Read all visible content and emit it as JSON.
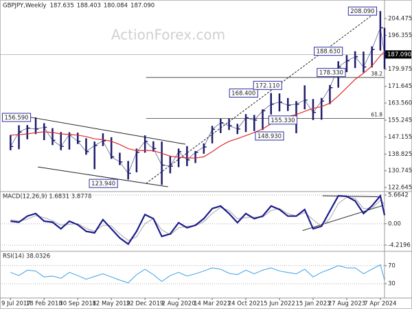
{
  "chart_data": [
    {
      "type": "ohlc",
      "title": "GBPJPY,Weekly",
      "ohlc_labels": [
        "187.635",
        "188.403",
        "180.084",
        "187.090"
      ],
      "watermark": "ActionForex.com",
      "x": [
        0,
        8,
        16,
        24,
        32,
        40,
        48,
        56,
        64,
        72,
        80,
        88,
        96,
        104,
        112,
        120,
        128,
        136,
        144,
        152,
        160,
        168,
        176,
        184,
        192,
        200,
        208,
        216,
        224,
        232,
        240,
        248,
        256,
        264,
        272,
        280,
        288,
        296,
        304,
        312,
        320,
        328,
        336,
        344,
        352,
        356
      ],
      "xlim": [
        -10,
        356
      ],
      "high": [
        148.1,
        152.8,
        152.9,
        156.59,
        153.8,
        151.4,
        149.5,
        149.4,
        149.2,
        146.5,
        144.9,
        148.9,
        147.0,
        139.5,
        135.5,
        141.5,
        147.9,
        145.0,
        144.9,
        137.9,
        141.5,
        142.7,
        140.3,
        144.0,
        152.5,
        156.0,
        156.1,
        153.5,
        158.2,
        157.8,
        160.5,
        168.4,
        168.2,
        166.0,
        164.5,
        172.11,
        165.5,
        166.0,
        172.3,
        183.8,
        186.8,
        188.63,
        188.5,
        191.0,
        208.09,
        200.0
      ],
      "low": [
        140.7,
        141.2,
        146.0,
        148.5,
        145.6,
        143.2,
        140.7,
        141.0,
        143.7,
        138.5,
        131.5,
        142.7,
        136.5,
        133.5,
        126.5,
        130.0,
        139.5,
        140.0,
        123.94,
        129.5,
        132.5,
        133.0,
        134.5,
        139.0,
        144.0,
        149.0,
        150.5,
        148.5,
        149.5,
        150.0,
        150.5,
        158.0,
        159.5,
        159.7,
        148.93,
        160.5,
        155.33,
        155.5,
        163.0,
        171.0,
        178.5,
        180.5,
        178.33,
        180.8,
        189.0,
        180.084
      ],
      "close": [
        142.5,
        149.5,
        151.4,
        151.0,
        151.8,
        145.5,
        142.6,
        148.2,
        145.0,
        140.0,
        143.0,
        145.2,
        137.5,
        135.0,
        129.5,
        139.7,
        145.0,
        141.5,
        133.5,
        133.0,
        140.0,
        136.0,
        139.7,
        142.3,
        150.8,
        154.0,
        152.6,
        151.0,
        156.4,
        155.3,
        159.8,
        163.0,
        164.0,
        162.5,
        163.0,
        165.0,
        159.0,
        164.5,
        171.0,
        181.0,
        184.0,
        186.0,
        181.0,
        189.5,
        200.0,
        187.09
      ],
      "color": "#1c1c6b",
      "ma": {
        "color": "#e02a2a",
        "values": [
          148.0,
          148.2,
          148.6,
          149.2,
          149.6,
          149.3,
          148.6,
          148.3,
          148.0,
          147.3,
          146.2,
          145.8,
          145.0,
          143.5,
          141.5,
          140.5,
          140.6,
          140.5,
          139.2,
          137.8,
          137.3,
          137.0,
          136.9,
          137.5,
          140.0,
          142.8,
          145.0,
          146.3,
          147.8,
          149.3,
          151.0,
          153.5,
          155.5,
          157.0,
          158.0,
          159.5,
          161.0,
          161.8,
          163.5,
          167.0,
          171.0,
          175.0,
          178.0,
          181.5,
          186.5,
          188.5
        ]
      },
      "ylim": [
        121,
        212.8
      ],
      "yticks": [
        122.645,
        130.745,
        138.825,
        147.155,
        155.245,
        {
          "value": 163.56,
          "label": "163.560"
        },
        171.645,
        179.975,
        196.355,
        204.475
      ],
      "last_price": {
        "value": 187.09,
        "label": "187.090"
      },
      "annotations": [
        {
          "text": "156.590",
          "x": 24,
          "y": 156.59
        },
        {
          "text": "123.940",
          "x": 144,
          "y": 123.94
        },
        {
          "text": "168.400",
          "x": 248,
          "y": 168.4
        },
        {
          "text": "172.110",
          "x": 280,
          "y": 172.11
        },
        {
          "text": "148.930",
          "x": 272,
          "y": 148.93
        },
        {
          "text": "155.330",
          "x": 288,
          "y": 155.33
        },
        {
          "text": "188.630",
          "x": 328,
          "y": 188.63
        },
        {
          "text": "178.330",
          "x": 336,
          "y": 178.33
        },
        {
          "text": "208.090",
          "x": 352,
          "y": 208.09
        }
      ],
      "levels": [
        {
          "label": "38.2",
          "value": 175.94,
          "x": 129
        },
        {
          "label": "61.8",
          "value": 156.08,
          "x": 129
        }
      ],
      "trendlines": [
        {
          "points": [
            [
              16.5,
              156.9
            ],
            [
              166.5,
              143.6
            ]
          ],
          "dashed": false
        },
        {
          "points": [
            [
              26,
              132.6
            ],
            [
              150,
              123.0
            ]
          ],
          "dashed": false
        },
        {
          "points": [
            [
              129,
              124.6
            ],
            [
              349.5,
              208.1
            ]
          ],
          "dashed": true
        }
      ]
    },
    {
      "type": "line",
      "title": "MACD(12,26,9) 1.6831 3.8778",
      "x": [
        0,
        8,
        16,
        24,
        32,
        40,
        48,
        56,
        64,
        72,
        80,
        88,
        96,
        104,
        112,
        120,
        128,
        136,
        144,
        152,
        160,
        168,
        176,
        184,
        192,
        200,
        208,
        216,
        224,
        232,
        240,
        248,
        256,
        264,
        272,
        280,
        288,
        296,
        304,
        312,
        320,
        328,
        336,
        344,
        352,
        356
      ],
      "xlim": [
        -10,
        356
      ],
      "series": [
        {
          "color": "#1a1a8c",
          "values": [
            0.5,
            0.3,
            1.5,
            2.0,
            0.5,
            0.3,
            -1.0,
            0.5,
            -0.2,
            -1.5,
            -1.8,
            0.8,
            -1.0,
            -2.8,
            -4.0,
            -1.5,
            1.8,
            1.0,
            -2.5,
            -2.0,
            0.2,
            -0.8,
            -0.3,
            1.0,
            3.0,
            3.5,
            2.0,
            0.2,
            2.0,
            1.0,
            1.5,
            3.5,
            2.8,
            1.5,
            1.5,
            2.8,
            -1.0,
            -0.5,
            2.5,
            5.5,
            5.4,
            4.5,
            2.0,
            3.5,
            5.5,
            1.6831
          ]
        },
        {
          "color": "#a8a8a8",
          "values": [
            0.8,
            0.5,
            0.9,
            1.6,
            1.2,
            0.6,
            -0.3,
            -0.1,
            0,
            -0.9,
            -1.5,
            -0.3,
            -0.4,
            -2.0,
            -3.3,
            -2.6,
            0,
            1.0,
            -1.2,
            -2.2,
            -0.8,
            -0.5,
            -0.4,
            0.4,
            2.0,
            3.2,
            2.6,
            1.0,
            1.2,
            1.3,
            1.3,
            2.6,
            3.0,
            2.0,
            1.5,
            2.2,
            0.8,
            -0.5,
            1.0,
            4.0,
            5.2,
            5.0,
            3.0,
            3.0,
            4.6,
            3.8778
          ]
        }
      ],
      "ylim": [
        -5.3,
        6.2
      ],
      "yticks": [
        5.6642,
        {
          "value": 0,
          "label": "0.00"
        },
        -4.2196
      ],
      "grid": true,
      "trendlines": [
        {
          "points": [
            [
              278,
              -1.35
            ],
            [
              355,
              3.64
            ]
          ],
          "dashed": false
        },
        {
          "points": [
            [
              297,
              5.5
            ],
            [
              352,
              5.3
            ]
          ],
          "dashed": false
        }
      ]
    },
    {
      "type": "line",
      "title": "RSI(14) 38.0326",
      "x": [
        0,
        8,
        16,
        24,
        32,
        40,
        48,
        56,
        64,
        72,
        80,
        88,
        96,
        104,
        112,
        120,
        128,
        136,
        144,
        152,
        160,
        168,
        176,
        184,
        192,
        200,
        208,
        216,
        224,
        232,
        240,
        248,
        256,
        264,
        272,
        280,
        288,
        296,
        304,
        312,
        320,
        328,
        336,
        344,
        352,
        356
      ],
      "xlim": [
        -10,
        356
      ],
      "series": [
        {
          "color": "#3b9fe6",
          "values": [
            55,
            48,
            60,
            58,
            45,
            47,
            42,
            55,
            48,
            40,
            46,
            52,
            45,
            38,
            32,
            50,
            62,
            50,
            35,
            48,
            55,
            47,
            52,
            58,
            65,
            62,
            53,
            50,
            60,
            52,
            60,
            65,
            58,
            55,
            52,
            62,
            45,
            55,
            62,
            70,
            65,
            65,
            52,
            62,
            72,
            38.0326
          ]
        }
      ],
      "ylim": [
        0,
        100
      ],
      "yticks": [
        70,
        30
      ],
      "grid": true,
      "xticks": [
        {
          "value": 0,
          "label": "9 Jul 2017"
        },
        {
          "value": 32,
          "label": "18 Feb 2018"
        },
        {
          "value": 64,
          "label": "30 Sep 2018"
        },
        {
          "value": 96,
          "label": "12 May 2019"
        },
        {
          "value": 128,
          "label": "22 Dec 2019"
        },
        {
          "value": 160,
          "label": "2 Aug 2020"
        },
        {
          "value": 192,
          "label": "14 Mar 2021"
        },
        {
          "value": 224,
          "label": "24 Oct 2021"
        },
        {
          "value": 256,
          "label": "5 Jun 2022"
        },
        {
          "value": 288,
          "label": "15 Jan 2023"
        },
        {
          "value": 320,
          "label": "27 Aug 2023"
        },
        {
          "value": 352,
          "label": "7 Apr 2024"
        }
      ]
    }
  ]
}
